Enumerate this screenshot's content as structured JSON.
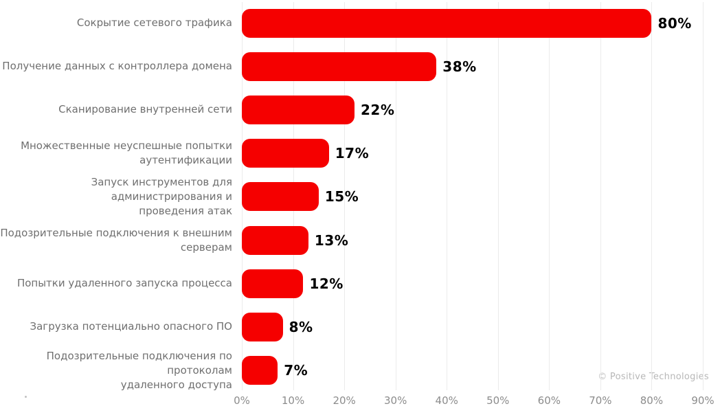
{
  "chart_data": {
    "type": "bar",
    "orientation": "horizontal",
    "title": "",
    "xlabel": "",
    "ylabel": "",
    "categories": [
      "Сокрытие сетевого трафика",
      "Получение данных с контроллера домена",
      "Сканирование внутренней сети",
      "Множественные неуспешные попытки\nаутентификации",
      "Запуск инструментов для администрирования и\nпроведения атак",
      "Подозрительные подключения к внешним\nсерверам",
      "Попытки удаленного запуска процесса",
      "Загрузка потенциально опасного ПО",
      "Подозрительные подключения по протоколам\nудаленного доступа"
    ],
    "values": [
      80,
      38,
      22,
      17,
      15,
      13,
      12,
      8,
      7
    ],
    "value_labels": [
      "80%",
      "38%",
      "22%",
      "17%",
      "15%",
      "13%",
      "12%",
      "8%",
      "7%"
    ],
    "x_ticks": [
      "0%",
      "10%",
      "20%",
      "30%",
      "40%",
      "50%",
      "60%",
      "70%",
      "80%",
      "90%"
    ],
    "xlim": [
      0,
      90
    ],
    "grid": true,
    "legend": "none",
    "bar_color": "#f50000"
  },
  "watermark": "© Positive Technologies",
  "colors": {
    "bar": "#f50000",
    "category_label": "#6f6f6f",
    "axis_label": "#8c8c8c",
    "value_label": "#000000",
    "gridline": "#ebebeb",
    "watermark": "#b7b7b7",
    "background": "#ffffff"
  }
}
